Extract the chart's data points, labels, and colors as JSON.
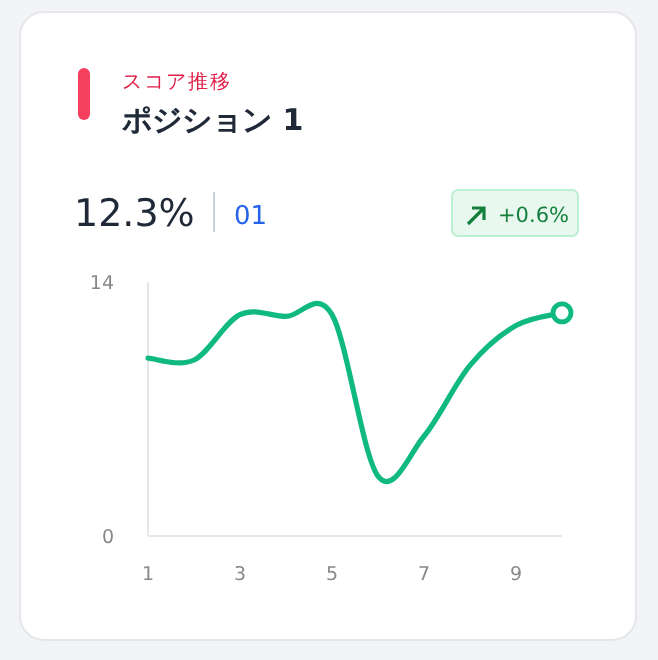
{
  "chart_data": {
    "type": "line",
    "subtitle": "スコア推移",
    "title": "ポジション 1",
    "annotations": [
      "12.3%",
      "01",
      "+0.6%"
    ],
    "x": [
      1,
      2,
      3,
      4,
      5,
      6,
      7,
      8,
      9,
      10
    ],
    "series": [
      {
        "color": "#10b981",
        "values": [
          9.8,
          9.7,
          12.2,
          12.1,
          12.2,
          3.3,
          5.5,
          9.4,
          11.6,
          12.3
        ]
      },
      {
        "type": "scatter",
        "marker": "circle",
        "color": "#10b981",
        "x": [
          10
        ],
        "values": [
          12.3
        ]
      }
    ],
    "xlim": [
      1,
      10
    ],
    "ylim": [
      0,
      14
    ],
    "xticks": [
      1,
      3,
      5,
      7,
      9
    ],
    "yticks": [
      0,
      14
    ],
    "grid": false,
    "marker": "none"
  }
}
